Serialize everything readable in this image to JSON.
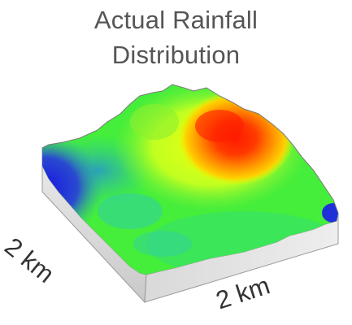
{
  "title_line1": "Actual Rainfall",
  "title_line2": "Distribution",
  "dim_left": "2 km",
  "dim_bottom": "2 km",
  "colors": {
    "title": "#555555",
    "label": "#333333",
    "low": "#1a1ae6",
    "mid_low": "#2fd2a0",
    "mid": "#3cf03c",
    "mid_high": "#e6ff00",
    "high": "#ff8800",
    "peak": "#ff1a00",
    "side_face": "#dcdcdc"
  }
}
